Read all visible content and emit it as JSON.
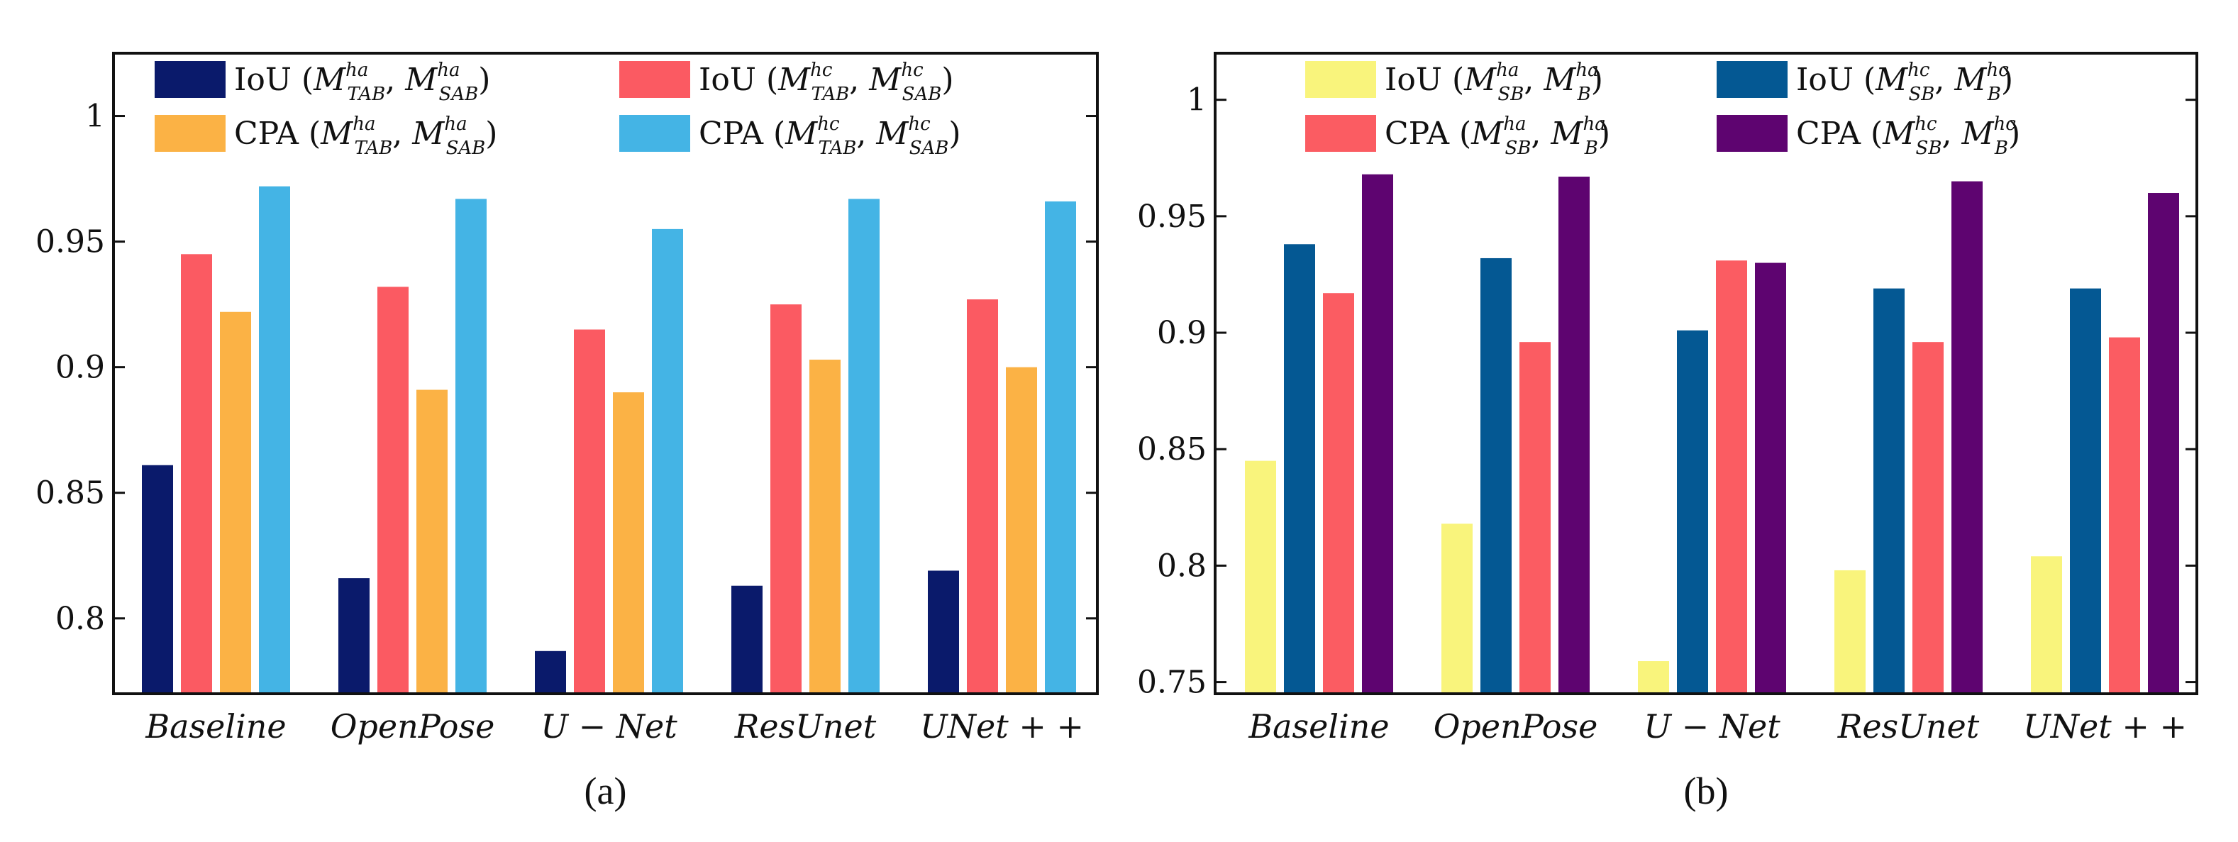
{
  "chart_data": [
    {
      "type": "bar",
      "panel_label": "(a)",
      "categories": [
        "Baseline",
        "OpenPose",
        "U − Net",
        "ResUnet",
        "UNet + +"
      ],
      "ylim": [
        0.77,
        1.025
      ],
      "yticks": [
        0.8,
        0.85,
        0.9,
        0.95,
        1
      ],
      "ytick_labels": [
        "0.8",
        "0.85",
        "0.9",
        "0.95",
        "1"
      ],
      "legend_cols": 2,
      "series": [
        {
          "metric": "IoU",
          "M1": "TAB",
          "S1": "ha",
          "M2": "SAB",
          "S2": "ha",
          "color": "#0a1a6b",
          "values": [
            0.861,
            0.816,
            0.787,
            0.813,
            0.819
          ]
        },
        {
          "metric": "IoU",
          "M1": "TAB",
          "S1": "hc",
          "M2": "SAB",
          "S2": "hc",
          "color": "#fb5a62",
          "values": [
            0.945,
            0.932,
            0.915,
            0.925,
            0.927
          ]
        },
        {
          "metric": "CPA",
          "M1": "TAB",
          "S1": "ha",
          "M2": "SAB",
          "S2": "ha",
          "color": "#fbb245",
          "values": [
            0.922,
            0.891,
            0.89,
            0.903,
            0.9
          ]
        },
        {
          "metric": "CPA",
          "M1": "TAB",
          "S1": "hc",
          "M2": "SAB",
          "S2": "hc",
          "color": "#44b4e5",
          "values": [
            0.972,
            0.967,
            0.955,
            0.967,
            0.966
          ]
        }
      ]
    },
    {
      "type": "bar",
      "panel_label": "(b)",
      "categories": [
        "Baseline",
        "OpenPose",
        "U − Net",
        "ResUnet",
        "UNet + +"
      ],
      "ylim": [
        0.745,
        1.02
      ],
      "yticks": [
        0.75,
        0.8,
        0.85,
        0.9,
        0.95,
        1
      ],
      "ytick_labels": [
        "0.75",
        "0.8",
        "0.85",
        "0.9",
        "0.95",
        "1"
      ],
      "legend_cols": 2,
      "series": [
        {
          "metric": "IoU",
          "M1": "SB",
          "S1": "ha",
          "M2": "B",
          "S2": "ha",
          "color": "#f9f47c",
          "values": [
            0.845,
            0.818,
            0.759,
            0.798,
            0.804
          ]
        },
        {
          "metric": "IoU",
          "M1": "SB",
          "S1": "hc",
          "M2": "B",
          "S2": "hc",
          "color": "#045893",
          "values": [
            0.938,
            0.932,
            0.901,
            0.919,
            0.919
          ]
        },
        {
          "metric": "CPA",
          "M1": "SB",
          "S1": "ha",
          "M2": "B",
          "S2": "ha",
          "color": "#fb5c62",
          "values": [
            0.917,
            0.896,
            0.931,
            0.896,
            0.898
          ]
        },
        {
          "metric": "CPA",
          "M1": "SB",
          "S1": "hc",
          "M2": "B",
          "S2": "hc",
          "color": "#5e0470",
          "values": [
            0.968,
            0.967,
            0.93,
            0.965,
            0.96
          ]
        }
      ]
    }
  ]
}
